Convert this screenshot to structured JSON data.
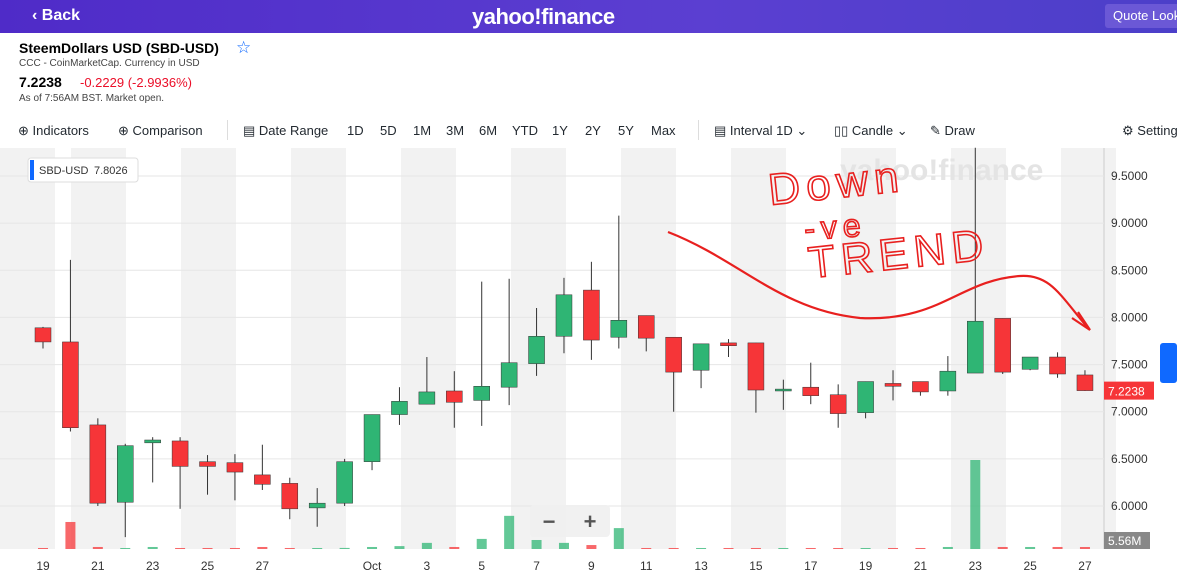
{
  "header": {
    "back": "Back",
    "logo": "yahoo!finance",
    "search": "Quote Lookup"
  },
  "quote": {
    "name": "SteemDollars USD (SBD-USD)",
    "source": "CCC - CoinMarketCap. Currency in USD",
    "price": 7.2238,
    "change": "-0.2229 (-2.9936%)",
    "as_of": "As of 7:56AM BST. Market open."
  },
  "toolbar": {
    "indicators": "Indicators",
    "comparison": "Comparison",
    "date_range": "Date Range",
    "ranges": [
      "1D",
      "5D",
      "1M",
      "3M",
      "6M",
      "YTD",
      "1Y",
      "2Y",
      "5Y",
      "Max"
    ],
    "interval": "Interval",
    "interval_value": "1D",
    "chart_type": "Candle",
    "draw": "Draw",
    "settings": "Settings"
  },
  "chart_data": {
    "type": "candlestick",
    "series_name": "SBD-USD",
    "legend_value": 7.8026,
    "last_price": 7.2238,
    "last_volume_label": "5.56M",
    "watermark": "yahoo!finance",
    "zoom": [
      "−",
      "+"
    ],
    "categories": [
      "19",
      null,
      "21",
      null,
      "23",
      null,
      "25",
      null,
      "27",
      null,
      null,
      null,
      "Oct",
      null,
      "3",
      null,
      "5",
      null,
      "7",
      null,
      "9",
      null,
      "11",
      null,
      "13",
      null,
      "15",
      null,
      "17",
      null,
      "19",
      null,
      "21",
      null,
      "23",
      null,
      "25",
      null,
      "27"
    ],
    "open": [
      7.89,
      7.74,
      6.86,
      6.04,
      6.67,
      6.69,
      6.47,
      6.46,
      6.33,
      6.24,
      5.98,
      6.03,
      6.47,
      6.97,
      7.08,
      7.22,
      7.12,
      7.26,
      7.51,
      7.8,
      8.29,
      7.79,
      8.02,
      7.79,
      7.44,
      7.73,
      7.73,
      7.22,
      7.26,
      7.18,
      6.99,
      7.3,
      7.32,
      7.22,
      7.41,
      7.99,
      7.45,
      7.58,
      7.39
    ],
    "high": [
      7.9,
      8.61,
      6.93,
      6.66,
      6.73,
      6.73,
      6.54,
      6.55,
      6.65,
      6.3,
      6.19,
      6.5,
      6.97,
      7.26,
      7.58,
      7.43,
      8.38,
      8.41,
      8.1,
      8.42,
      8.59,
      9.08,
      8.02,
      7.79,
      7.72,
      7.77,
      7.73,
      7.34,
      7.52,
      7.29,
      7.32,
      7.44,
      7.32,
      7.59,
      9.8,
      7.99,
      7.58,
      7.63,
      7.44
    ],
    "low": [
      7.67,
      6.79,
      6.0,
      5.67,
      6.25,
      5.97,
      6.12,
      6.06,
      6.17,
      5.86,
      5.78,
      6.0,
      6.38,
      6.86,
      7.08,
      6.83,
      6.85,
      7.07,
      7.38,
      7.62,
      7.55,
      7.67,
      7.64,
      7.0,
      7.25,
      7.58,
      6.99,
      7.02,
      7.08,
      6.83,
      6.93,
      7.12,
      7.17,
      7.17,
      7.41,
      7.4,
      7.44,
      7.36,
      7.22
    ],
    "close": [
      7.74,
      6.83,
      6.03,
      6.64,
      6.7,
      6.42,
      6.42,
      6.36,
      6.23,
      5.97,
      6.03,
      6.47,
      6.97,
      7.11,
      7.21,
      7.1,
      7.27,
      7.52,
      7.8,
      8.24,
      7.76,
      7.97,
      7.78,
      7.42,
      7.72,
      7.7,
      7.23,
      7.24,
      7.17,
      6.98,
      7.32,
      7.27,
      7.21,
      7.43,
      7.96,
      7.42,
      7.58,
      7.4,
      7.2238
    ],
    "volume": [
      2.8,
      75,
      5.6,
      2.8,
      5.6,
      2.8,
      2.8,
      2.8,
      5.6,
      2.8,
      2.8,
      3,
      5.6,
      8,
      17,
      5.6,
      28,
      92,
      25,
      17,
      11,
      58,
      2.8,
      2.8,
      2.8,
      2.8,
      2.8,
      2.8,
      2.8,
      2.8,
      2.8,
      2.8,
      2.8,
      5.6,
      247,
      5.6,
      5.6,
      5.6,
      5.56
    ],
    "colors": {
      "up": "#2fb574",
      "down": "#f63538"
    },
    "ylim": [
      5.544,
      9.797
    ],
    "yticks": [
      {
        "value": 6,
        "label": "6.0000"
      },
      {
        "value": 6.5,
        "label": "6.5000"
      },
      {
        "value": 7,
        "label": "7.0000"
      },
      {
        "value": 7.5,
        "label": "7.5000"
      },
      {
        "value": 8,
        "label": "8.0000"
      },
      {
        "value": 8.5,
        "label": "8.5000"
      },
      {
        "value": 9,
        "label": "9.0000"
      },
      {
        "value": 9.5,
        "label": "9.5000"
      }
    ],
    "grid": true,
    "annotations": [
      "Down",
      "-ve",
      "TREND"
    ]
  }
}
